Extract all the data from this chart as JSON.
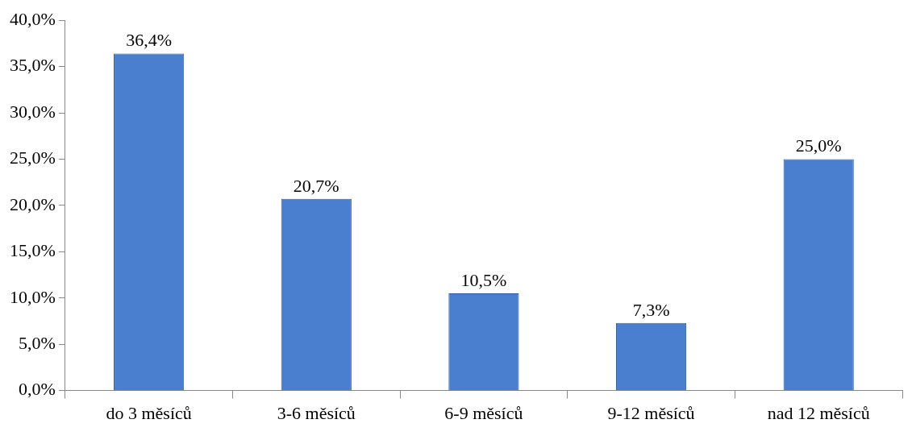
{
  "chart_data": {
    "type": "bar",
    "categories": [
      "do 3 měsíců",
      "3-6 měsíců",
      "6-9 měsíců",
      "9-12 měsíců",
      "nad 12 měsíců"
    ],
    "values": [
      36.4,
      20.7,
      10.5,
      7.3,
      25.0
    ],
    "value_labels": [
      "36,4%",
      "20,7%",
      "10,5%",
      "7,3%",
      "25,0%"
    ],
    "color": "#4a7fd0",
    "ylim": [
      0,
      40
    ],
    "yticks": [
      {
        "value": 0,
        "label": "0,0%"
      },
      {
        "value": 5,
        "label": "5,0%"
      },
      {
        "value": 10,
        "label": "10,0%"
      },
      {
        "value": 15,
        "label": "15,0%"
      },
      {
        "value": 20,
        "label": "20,0%"
      },
      {
        "value": 25,
        "label": "25,0%"
      },
      {
        "value": 30,
        "label": "30,0%"
      },
      {
        "value": 35,
        "label": "35,0%"
      },
      {
        "value": 40,
        "label": "40,0%"
      }
    ],
    "grid": false,
    "legend": false
  }
}
